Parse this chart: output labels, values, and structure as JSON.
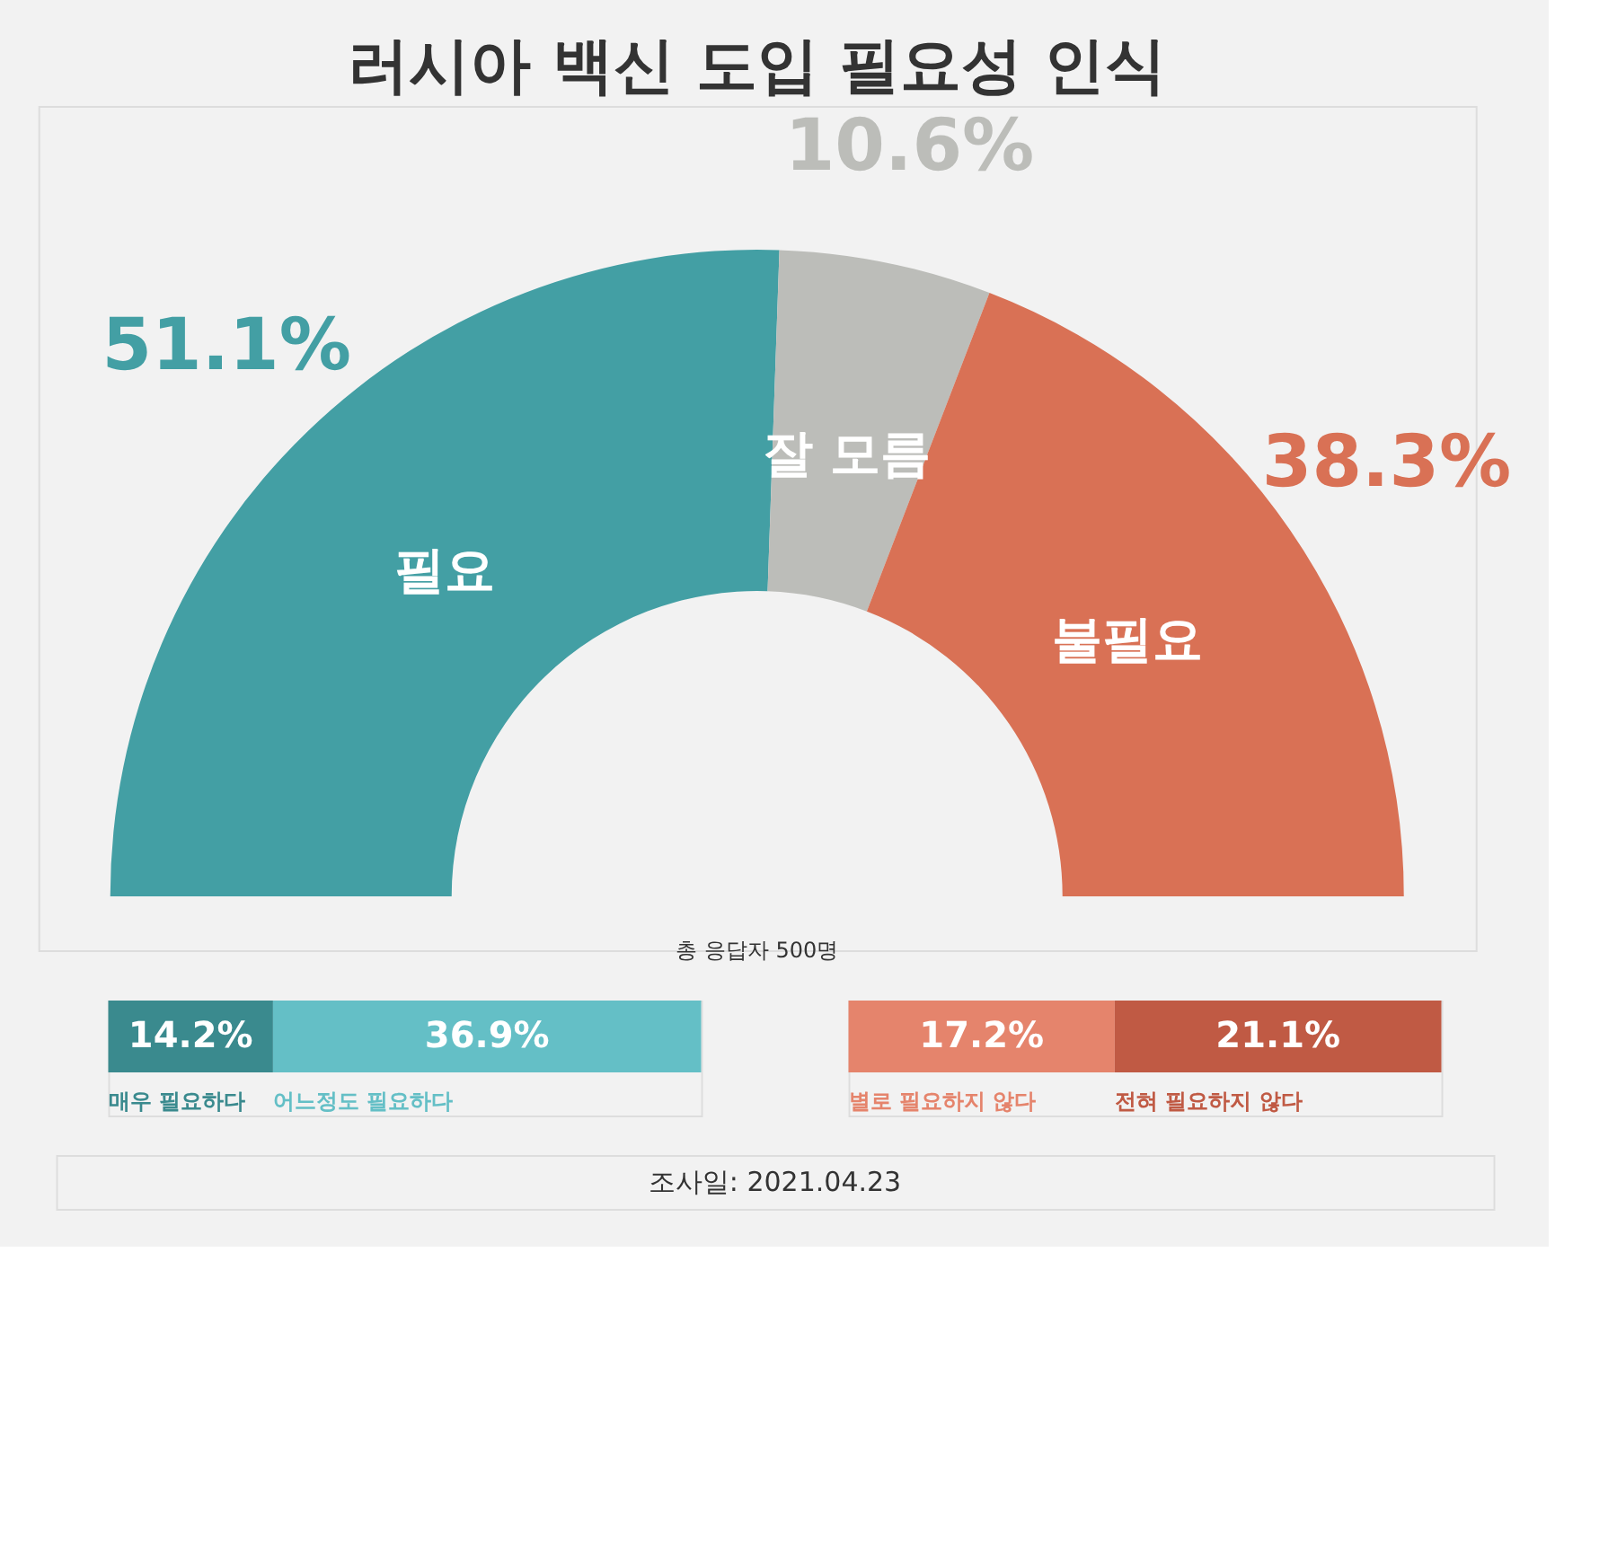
{
  "chart_data": [
    {
      "type": "donut",
      "title": "러시아 백신 도입 필요성 인식",
      "categories": [
        "필요",
        "잘 모름",
        "불필요"
      ],
      "values": [
        51.1,
        10.6,
        38.3
      ],
      "colors": [
        "#439fa4",
        "#bcbdb9",
        "#d97155"
      ],
      "value_labels": [
        "51.1%",
        "10.6%",
        "38.3%"
      ],
      "annotations": [
        "총 응답자 500명",
        "조사일: 2021.04.23"
      ]
    },
    {
      "type": "bar",
      "orientation": "horizontal",
      "stacked": true,
      "categories": [
        null
      ],
      "series": [
        {
          "name": "매우 필요하다",
          "color": "#3a8a8e",
          "values": [
            14.2
          ],
          "value_labels": [
            "14.2%"
          ]
        },
        {
          "name": "어느정도 필요하다",
          "color": "#64bfc6",
          "values": [
            36.9
          ],
          "value_labels": [
            "36.9%"
          ]
        }
      ]
    },
    {
      "type": "bar",
      "orientation": "horizontal",
      "stacked": true,
      "categories": [
        null
      ],
      "series": [
        {
          "name": "별로 필요하지 않다",
          "color": "#e5846c",
          "values": [
            17.2
          ],
          "value_labels": [
            "17.2%"
          ]
        },
        {
          "name": "전혀 필요하지 않다",
          "color": "#c05a44",
          "values": [
            21.1
          ],
          "value_labels": [
            "21.1%"
          ]
        }
      ]
    }
  ]
}
